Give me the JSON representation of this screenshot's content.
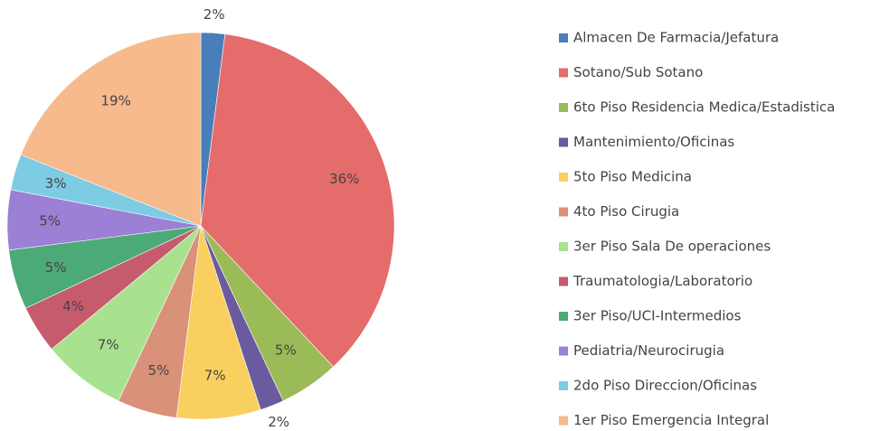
{
  "chart_data": {
    "type": "pie",
    "categories": [
      "Almacen De Farmacia/Jefatura",
      "Sotano/Sub Sotano",
      "6to Piso Residencia Medica/Estadistica",
      "Mantenimiento/Oficinas",
      "5to Piso Medicina",
      "4to Piso Cirugia",
      "3er Piso Sala De operaciones",
      "Traumatologia/Laboratorio",
      "3er Piso/UCI-Intermedios",
      "Pediatria/Neurocirugia",
      "2do Piso Direccion/Oficinas",
      "1er Piso Emergencia Integral"
    ],
    "values": [
      2,
      36,
      5,
      2,
      7,
      5,
      7,
      4,
      5,
      5,
      3,
      19
    ],
    "value_labels": [
      "2%",
      "36%",
      "5%",
      "2%",
      "7%",
      "5%",
      "7%",
      "4%",
      "5%",
      "5%",
      "3%",
      "19%"
    ],
    "colors": [
      "#4a7ebb",
      "#e46c6a",
      "#9bbb59",
      "#6a5a9e",
      "#f9cf5f",
      "#d9917a",
      "#a9e28e",
      "#c75b6e",
      "#4caa78",
      "#9b80d6",
      "#7ecbe4",
      "#f7ba8c"
    ],
    "legend": "right"
  }
}
